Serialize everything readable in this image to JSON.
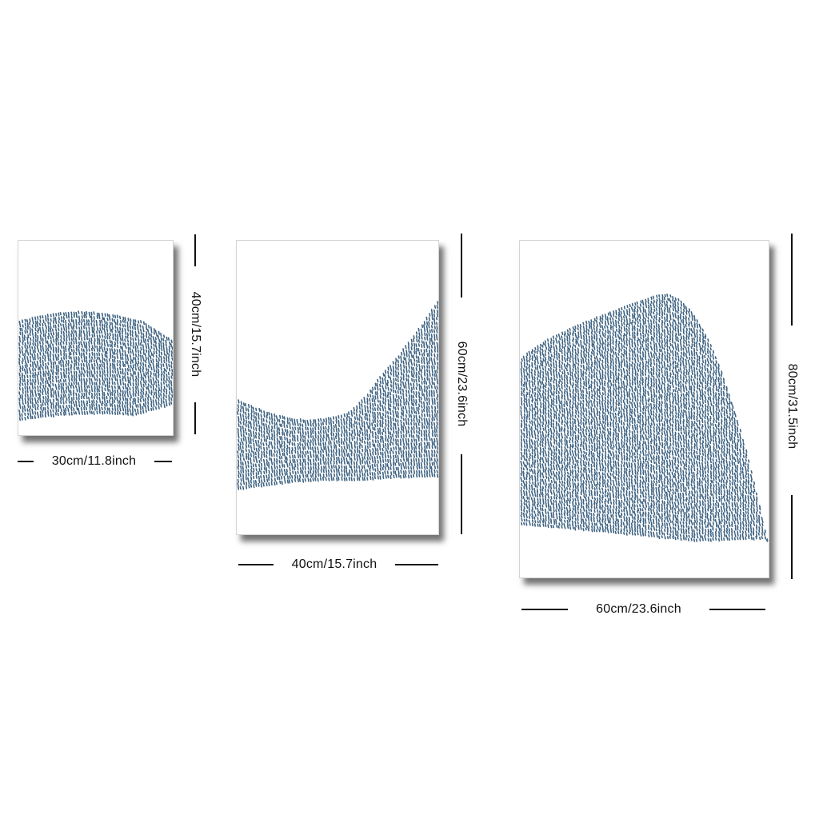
{
  "colors": {
    "dash": "#3d6180",
    "line": "#111111",
    "background": "#ffffff"
  },
  "panels": [
    {
      "width_label": "30cm/11.8inch",
      "height_label": "40cm/15.7inch"
    },
    {
      "width_label": "40cm/15.7inch",
      "height_label": "60cm/23.6inch"
    },
    {
      "width_label": "60cm/23.6inch",
      "height_label": "80cm/31.5inch"
    }
  ]
}
